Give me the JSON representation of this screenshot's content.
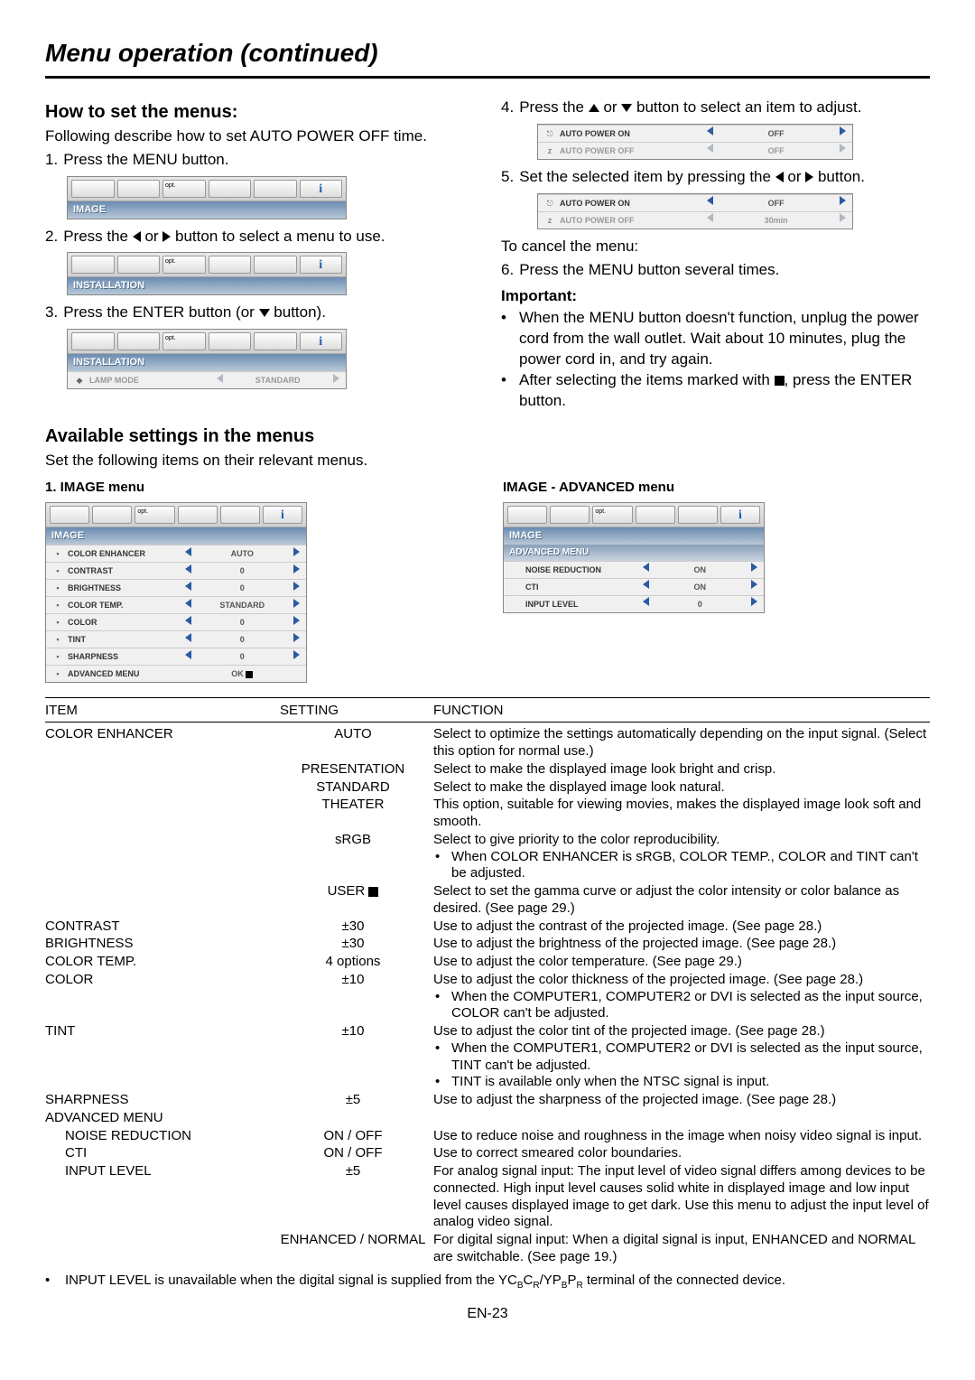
{
  "page_title": "Menu operation (continued)",
  "page_number": "EN-23",
  "left": {
    "heading": "How to set the menus:",
    "intro": "Following describe how to set AUTO POWER OFF time.",
    "steps": {
      "s1": "Press the MENU button.",
      "s2a": "Press the ",
      "s2b": " or ",
      "s2c": " button to select a menu to use.",
      "s3a": "Press the ENTER button (or ",
      "s3b": " button)."
    },
    "box1": {
      "name": "IMAGE"
    },
    "box2": {
      "name": "INSTALLATION"
    },
    "box3": {
      "name": "INSTALLATION",
      "row_label": "LAMP MODE",
      "row_value": "STANDARD"
    }
  },
  "right": {
    "s4a": "Press the ",
    "s4b": " or ",
    "s4c": " button to select an item to adjust.",
    "box4": {
      "r1_label": "AUTO POWER ON",
      "r1_val": "OFF",
      "r2_label": "AUTO POWER OFF",
      "r2_val": "OFF"
    },
    "s5a": "Set the selected item by pressing the ",
    "s5b": " or ",
    "s5c": " button.",
    "box5": {
      "r1_label": "AUTO POWER ON",
      "r1_val": "OFF",
      "r2_label": "AUTO POWER OFF",
      "r2_val": "30min"
    },
    "cancel": "To cancel the menu:",
    "s6": "Press the MENU button several times.",
    "important": "Important:",
    "imp1": "When the MENU button doesn't function, unplug the power cord from the wall outlet. Wait about 10 minutes, plug the power cord in, and try again.",
    "imp2a": "After selecting the items marked with ",
    "imp2b": ", press the ENTER button."
  },
  "available": {
    "heading": "Available settings in the menus",
    "intro": "Set the following items on their relevant menus."
  },
  "image_menu": {
    "title": "1. IMAGE menu",
    "name": "IMAGE",
    "rows": [
      {
        "label": "COLOR ENHANCER",
        "val": "AUTO"
      },
      {
        "label": "CONTRAST",
        "val": "0"
      },
      {
        "label": "BRIGHTNESS",
        "val": "0"
      },
      {
        "label": "COLOR TEMP.",
        "val": "STANDARD"
      },
      {
        "label": "COLOR",
        "val": "0"
      },
      {
        "label": "TINT",
        "val": "0"
      },
      {
        "label": "SHARPNESS",
        "val": "0"
      },
      {
        "label": "ADVANCED MENU",
        "val": "OK"
      }
    ]
  },
  "adv_menu": {
    "title": "IMAGE - ADVANCED menu",
    "name": "IMAGE",
    "sub": "ADVANCED MENU",
    "rows": [
      {
        "label": "NOISE REDUCTION",
        "val": "ON"
      },
      {
        "label": "CTI",
        "val": "ON"
      },
      {
        "label": "INPUT LEVEL",
        "val": "0"
      }
    ]
  },
  "table": {
    "h1": "ITEM",
    "h2": "SETTING",
    "h3": "FUNCTION",
    "rows": [
      {
        "item": "COLOR ENHANCER",
        "setting": "AUTO",
        "func": "Select to optimize the settings automatically depending on the input signal. (Select this option for normal use.)"
      },
      {
        "item": "",
        "setting": "PRESENTATION",
        "func": "Select to make the displayed image look bright and crisp."
      },
      {
        "item": "",
        "setting": "STANDARD",
        "func": "Select to make the displayed image look natural."
      },
      {
        "item": "",
        "setting": "THEATER",
        "func": "This option, suitable for viewing movies, makes the displayed image look soft and smooth."
      },
      {
        "item": "",
        "setting": "sRGB",
        "func": "Select to give priority to the color reproducibility.",
        "bullets": [
          "When COLOR ENHANCER is sRGB, COLOR TEMP., COLOR and TINT can't be adjusted."
        ]
      },
      {
        "item": "",
        "setting": "USER",
        "enter": true,
        "func": "Select to set the gamma curve or adjust the color intensity or color balance as desired. (See page 29.)"
      },
      {
        "item": "CONTRAST",
        "setting": "±30",
        "func": "Use to adjust the contrast of the projected image. (See page 28.)"
      },
      {
        "item": "BRIGHTNESS",
        "setting": "±30",
        "func": "Use to adjust the brightness of the projected image. (See page 28.)"
      },
      {
        "item": "COLOR TEMP.",
        "setting": "4 options",
        "func": "Use to adjust the color temperature. (See page 29.)"
      },
      {
        "item": "COLOR",
        "setting": "±10",
        "func": "Use to adjust the color thickness of the projected image. (See page 28.)",
        "bullets": [
          "When the COMPUTER1, COMPUTER2 or DVI is selected as the input source, COLOR can't be adjusted."
        ]
      },
      {
        "item": "TINT",
        "setting": "±10",
        "func": "Use to adjust the color tint of the projected image. (See page 28.)",
        "bullets": [
          "When the COMPUTER1, COMPUTER2 or DVI is selected as the input source, TINT can't be adjusted.",
          "TINT is available only when the NTSC signal is input."
        ]
      },
      {
        "item": "SHARPNESS",
        "setting": "±5",
        "func": "Use to adjust the sharpness of the projected image. (See page 28.)"
      },
      {
        "item": "ADVANCED MENU",
        "setting": "",
        "func": ""
      },
      {
        "item": "NOISE REDUCTION",
        "indent": true,
        "setting": "ON / OFF",
        "func": "Use to reduce noise and roughness in the image when noisy video signal is input."
      },
      {
        "item": "CTI",
        "indent": true,
        "setting": "ON / OFF",
        "func": "Use to correct smeared color boundaries."
      },
      {
        "item": "INPUT LEVEL",
        "indent": true,
        "setting": "±5",
        "func": "For analog signal input: The input level of video signal differs among devices to be connected. High input level causes solid white in displayed image and low input level causes displayed image to get dark. Use this menu to adjust the input level of analog video signal."
      },
      {
        "item": "",
        "setting": "ENHANCED / NORMAL",
        "func": "For digital signal input: When a digital signal is input, ENHANCED and NORMAL are switchable. (See page 19.)"
      }
    ],
    "footnote_a": "INPUT LEVEL is unavailable when the digital signal is supplied from the YC",
    "footnote_b": "/YP",
    "footnote_c": " terminal of the connected device.",
    "sub_bcr": "B",
    "sub_cr": "C",
    "sub_r": "R",
    "sub_pb": "B",
    "sub_pr": "P",
    "sub_r2": "R"
  }
}
